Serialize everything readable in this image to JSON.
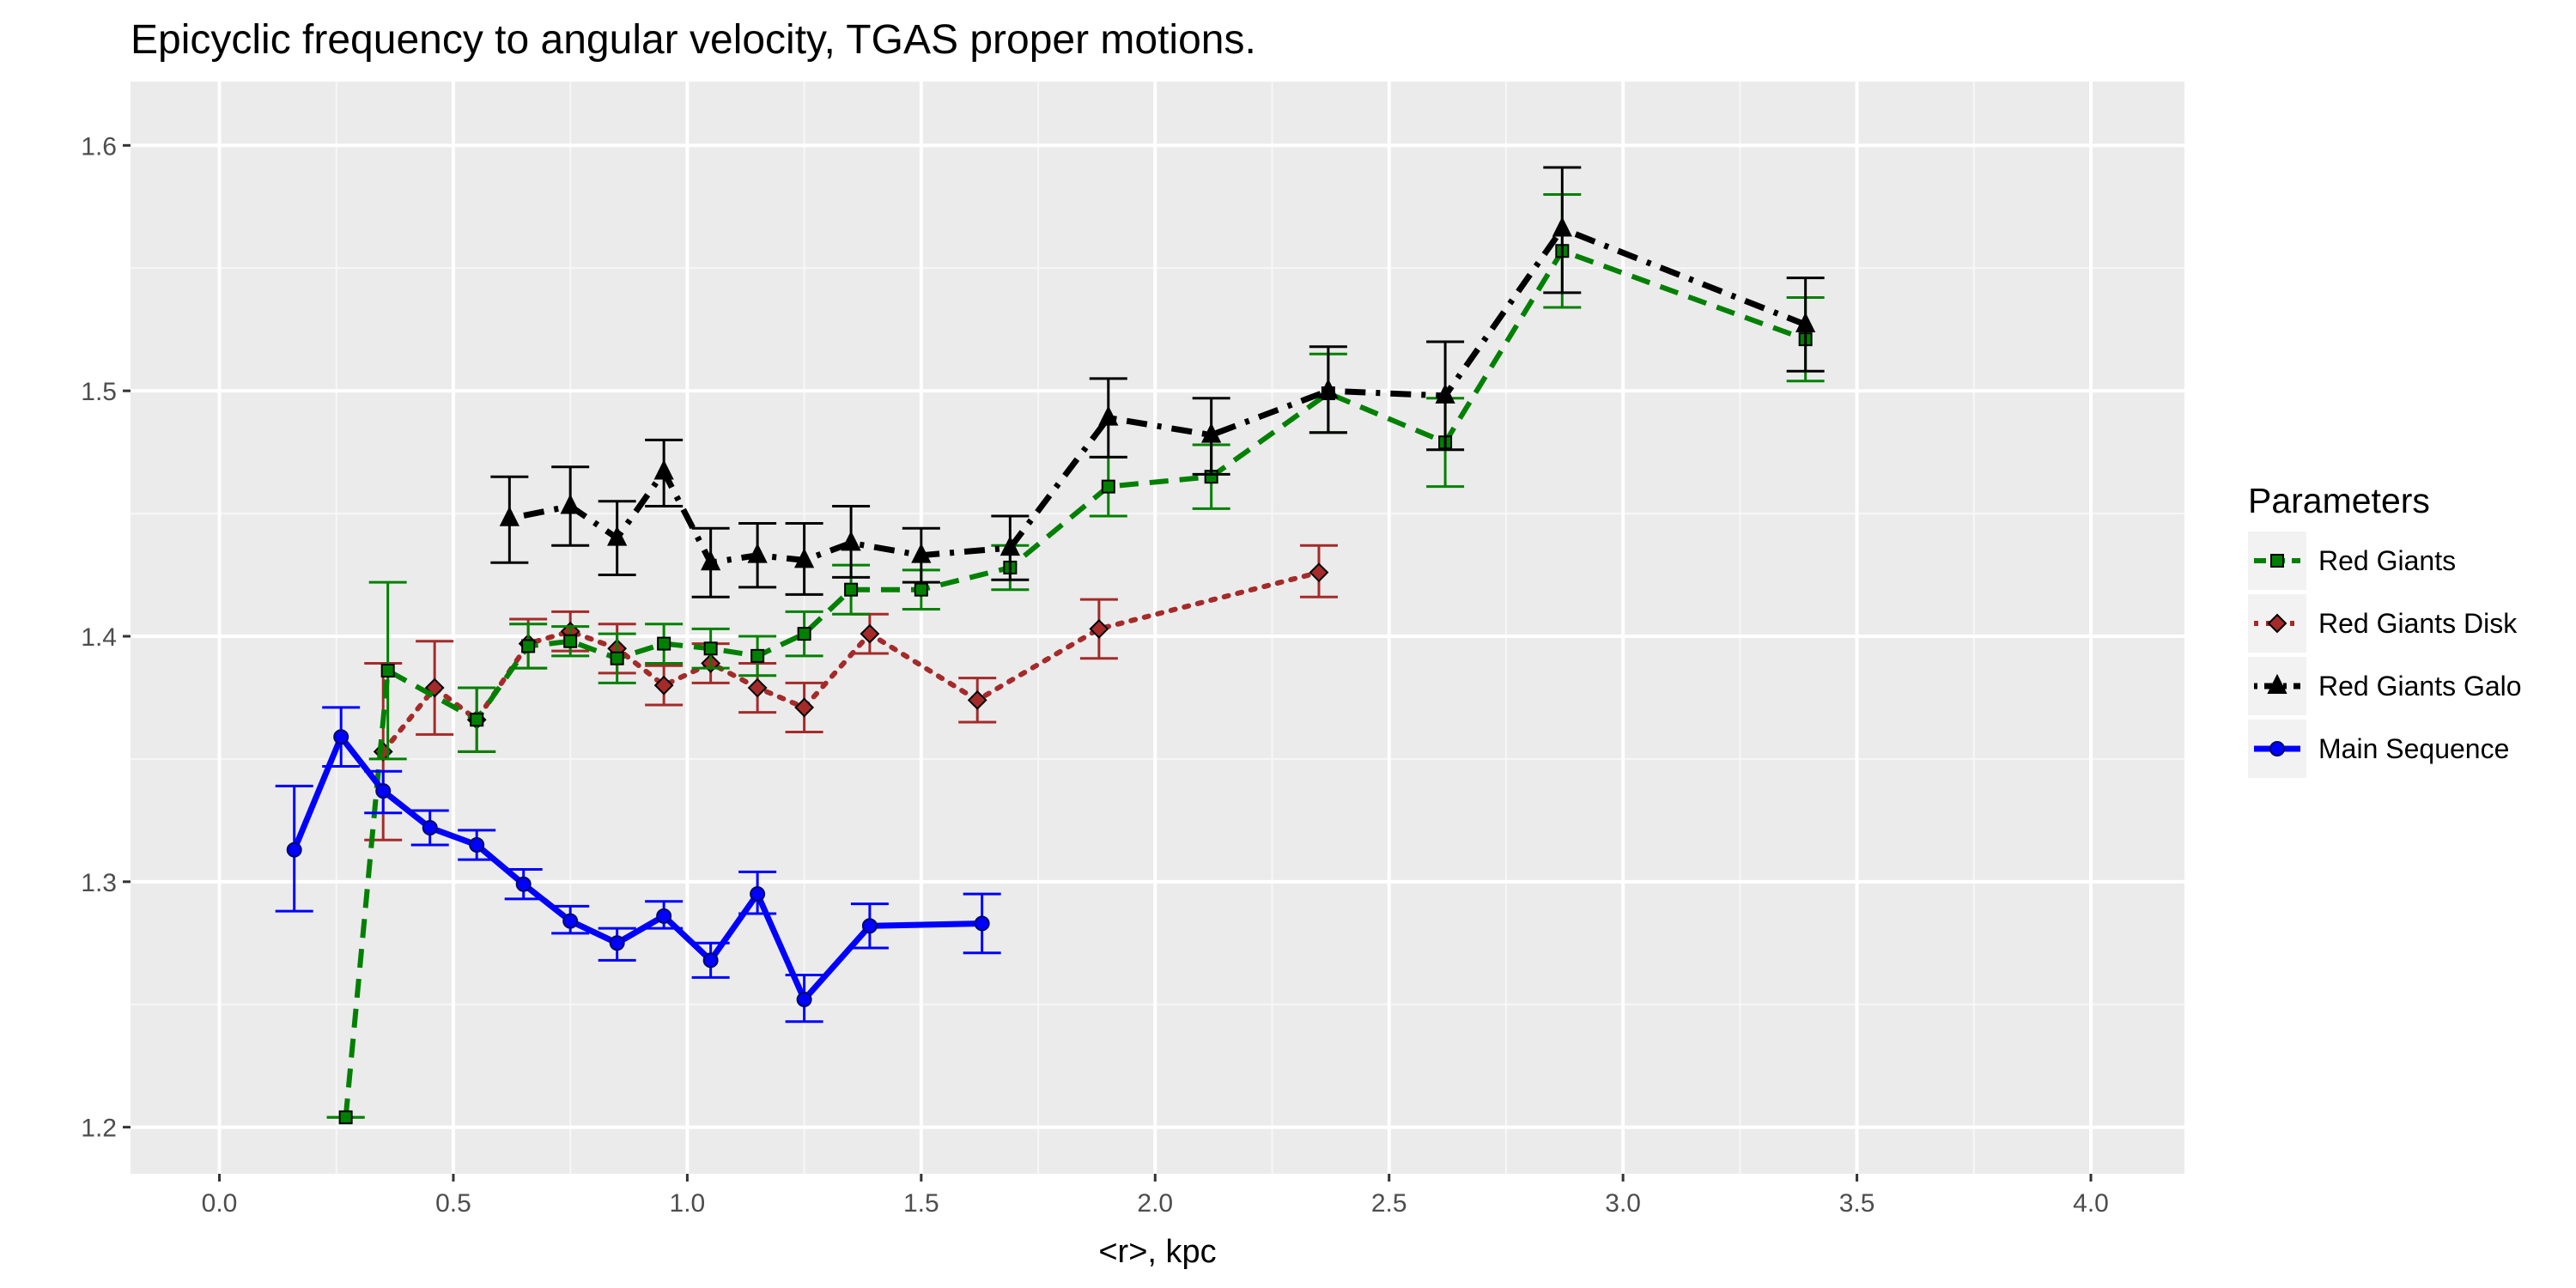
{
  "chart_data": {
    "type": "line",
    "title": "Epicyclic frequency to angular velocity,  TGAS  proper motions.",
    "xlabel": "<r>, kpc",
    "ylabel": "",
    "xlim": [
      -0.19,
      4.2
    ],
    "ylim": [
      1.181,
      1.626
    ],
    "x_ticks": [
      0.0,
      0.5,
      1.0,
      1.5,
      2.0,
      2.5,
      3.0,
      3.5,
      4.0
    ],
    "x_tick_labels": [
      "0.0",
      "0.5",
      "1.0",
      "1.5",
      "2.0",
      "2.5",
      "3.0",
      "3.5",
      "4.0"
    ],
    "y_ticks": [
      1.2,
      1.3,
      1.4,
      1.5,
      1.6
    ],
    "y_tick_labels": [
      "1.2",
      "1.3",
      "1.4",
      "1.5",
      "1.6"
    ],
    "grid": true,
    "legend_position": "right",
    "legend_title": "Parameters",
    "series": [
      {
        "name": "Red Giants",
        "color": "#008000",
        "line_style": "dashed",
        "marker": "square",
        "x": [
          0.27,
          0.36,
          0.55,
          0.66,
          0.75,
          0.85,
          0.95,
          1.05,
          1.15,
          1.25,
          1.35,
          1.5,
          1.69,
          1.9,
          2.12,
          2.37,
          2.62,
          2.87,
          3.39
        ],
        "y": [
          1.204,
          1.386,
          1.366,
          1.396,
          1.398,
          1.391,
          1.397,
          1.395,
          1.392,
          1.401,
          1.419,
          1.419,
          1.428,
          1.461,
          1.465,
          1.499,
          1.479,
          1.557,
          1.521
        ],
        "err_low": [
          1.204,
          1.35,
          1.353,
          1.387,
          1.392,
          1.381,
          1.389,
          1.387,
          1.384,
          1.392,
          1.409,
          1.411,
          1.419,
          1.449,
          1.452,
          1.483,
          1.461,
          1.534,
          1.504
        ],
        "err_high": [
          1.204,
          1.422,
          1.379,
          1.405,
          1.404,
          1.401,
          1.405,
          1.403,
          1.4,
          1.41,
          1.429,
          1.427,
          1.437,
          1.473,
          1.478,
          1.515,
          1.497,
          1.58,
          1.538
        ]
      },
      {
        "name": "Red Giants Disk",
        "color": "#a52a2a",
        "line_style": "dotted",
        "marker": "diamond",
        "x": [
          0.35,
          0.46,
          0.55,
          0.66,
          0.75,
          0.85,
          0.95,
          1.05,
          1.15,
          1.25,
          1.39,
          1.62,
          1.88,
          2.35
        ],
        "y": [
          1.353,
          1.379,
          1.366,
          1.397,
          1.402,
          1.395,
          1.38,
          1.389,
          1.379,
          1.371,
          1.401,
          1.374,
          1.403,
          1.426
        ],
        "err_low": [
          1.317,
          1.36,
          1.353,
          1.387,
          1.394,
          1.385,
          1.372,
          1.381,
          1.369,
          1.361,
          1.393,
          1.365,
          1.391,
          1.416
        ],
        "err_high": [
          1.389,
          1.398,
          1.379,
          1.407,
          1.41,
          1.405,
          1.388,
          1.397,
          1.389,
          1.381,
          1.409,
          1.383,
          1.415,
          1.437
        ]
      },
      {
        "name": "Red Giants Galo",
        "color": "#000000",
        "line_style": "dotdash",
        "marker": "triangle",
        "x": [
          0.62,
          0.75,
          0.85,
          0.95,
          1.05,
          1.15,
          1.25,
          1.35,
          1.5,
          1.69,
          1.9,
          2.12,
          2.37,
          2.62,
          2.87,
          3.39
        ],
        "y": [
          1.448,
          1.453,
          1.44,
          1.467,
          1.43,
          1.433,
          1.431,
          1.438,
          1.433,
          1.436,
          1.489,
          1.482,
          1.5,
          1.498,
          1.566,
          1.527
        ],
        "err_low": [
          1.43,
          1.437,
          1.425,
          1.453,
          1.416,
          1.42,
          1.417,
          1.424,
          1.422,
          1.423,
          1.473,
          1.466,
          1.483,
          1.476,
          1.54,
          1.508
        ],
        "err_high": [
          1.465,
          1.469,
          1.455,
          1.48,
          1.444,
          1.446,
          1.446,
          1.453,
          1.444,
          1.449,
          1.505,
          1.497,
          1.518,
          1.52,
          1.591,
          1.546
        ]
      },
      {
        "name": "Main Sequence",
        "color": "#0000ff",
        "line_style": "solid",
        "marker": "circle",
        "x": [
          0.16,
          0.26,
          0.35,
          0.45,
          0.55,
          0.65,
          0.75,
          0.85,
          0.95,
          1.05,
          1.15,
          1.25,
          1.39,
          1.63
        ],
        "y": [
          1.313,
          1.359,
          1.337,
          1.322,
          1.315,
          1.299,
          1.284,
          1.275,
          1.286,
          1.268,
          1.295,
          1.252,
          1.282,
          1.283
        ],
        "err_low": [
          1.288,
          1.347,
          1.328,
          1.315,
          1.309,
          1.293,
          1.279,
          1.268,
          1.281,
          1.261,
          1.287,
          1.243,
          1.273,
          1.271
        ],
        "err_high": [
          1.339,
          1.371,
          1.345,
          1.329,
          1.321,
          1.305,
          1.29,
          1.281,
          1.292,
          1.275,
          1.304,
          1.262,
          1.291,
          1.295
        ]
      }
    ]
  }
}
